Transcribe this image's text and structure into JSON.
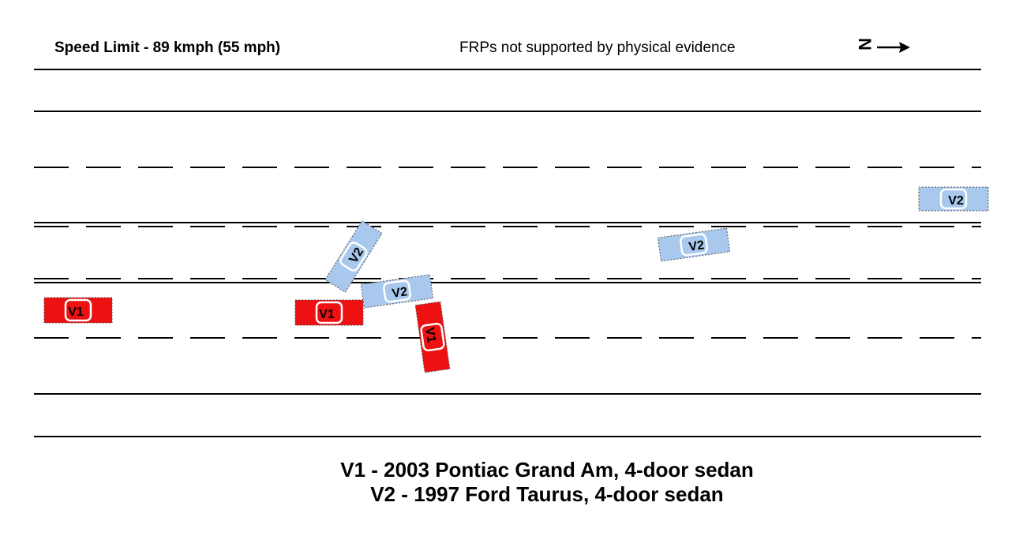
{
  "header": {
    "speed_limit": "Speed Limit - 89 kmph (55 mph)",
    "note": "FRPs not supported by physical evidence",
    "north_letter": "N"
  },
  "vehicles": [
    {
      "id": "V1",
      "label": "V1",
      "description": "2003 Pontiac Grand Am, 4-door sedan",
      "color": "#ee1111"
    },
    {
      "id": "V2",
      "label": "V2",
      "description": "1997 Ford Taurus, 4-door sedan",
      "color": "#a9c8ee"
    }
  ],
  "legend": {
    "v1": "V1 - 2003 Pontiac Grand Am, 4-door sedan",
    "v2": "V2 - 1997 Ford Taurus, 4-door sedan"
  },
  "colors": {
    "v1_fill": "#ee1111",
    "v2_fill": "#a9c8ee",
    "lines": "#000000"
  }
}
